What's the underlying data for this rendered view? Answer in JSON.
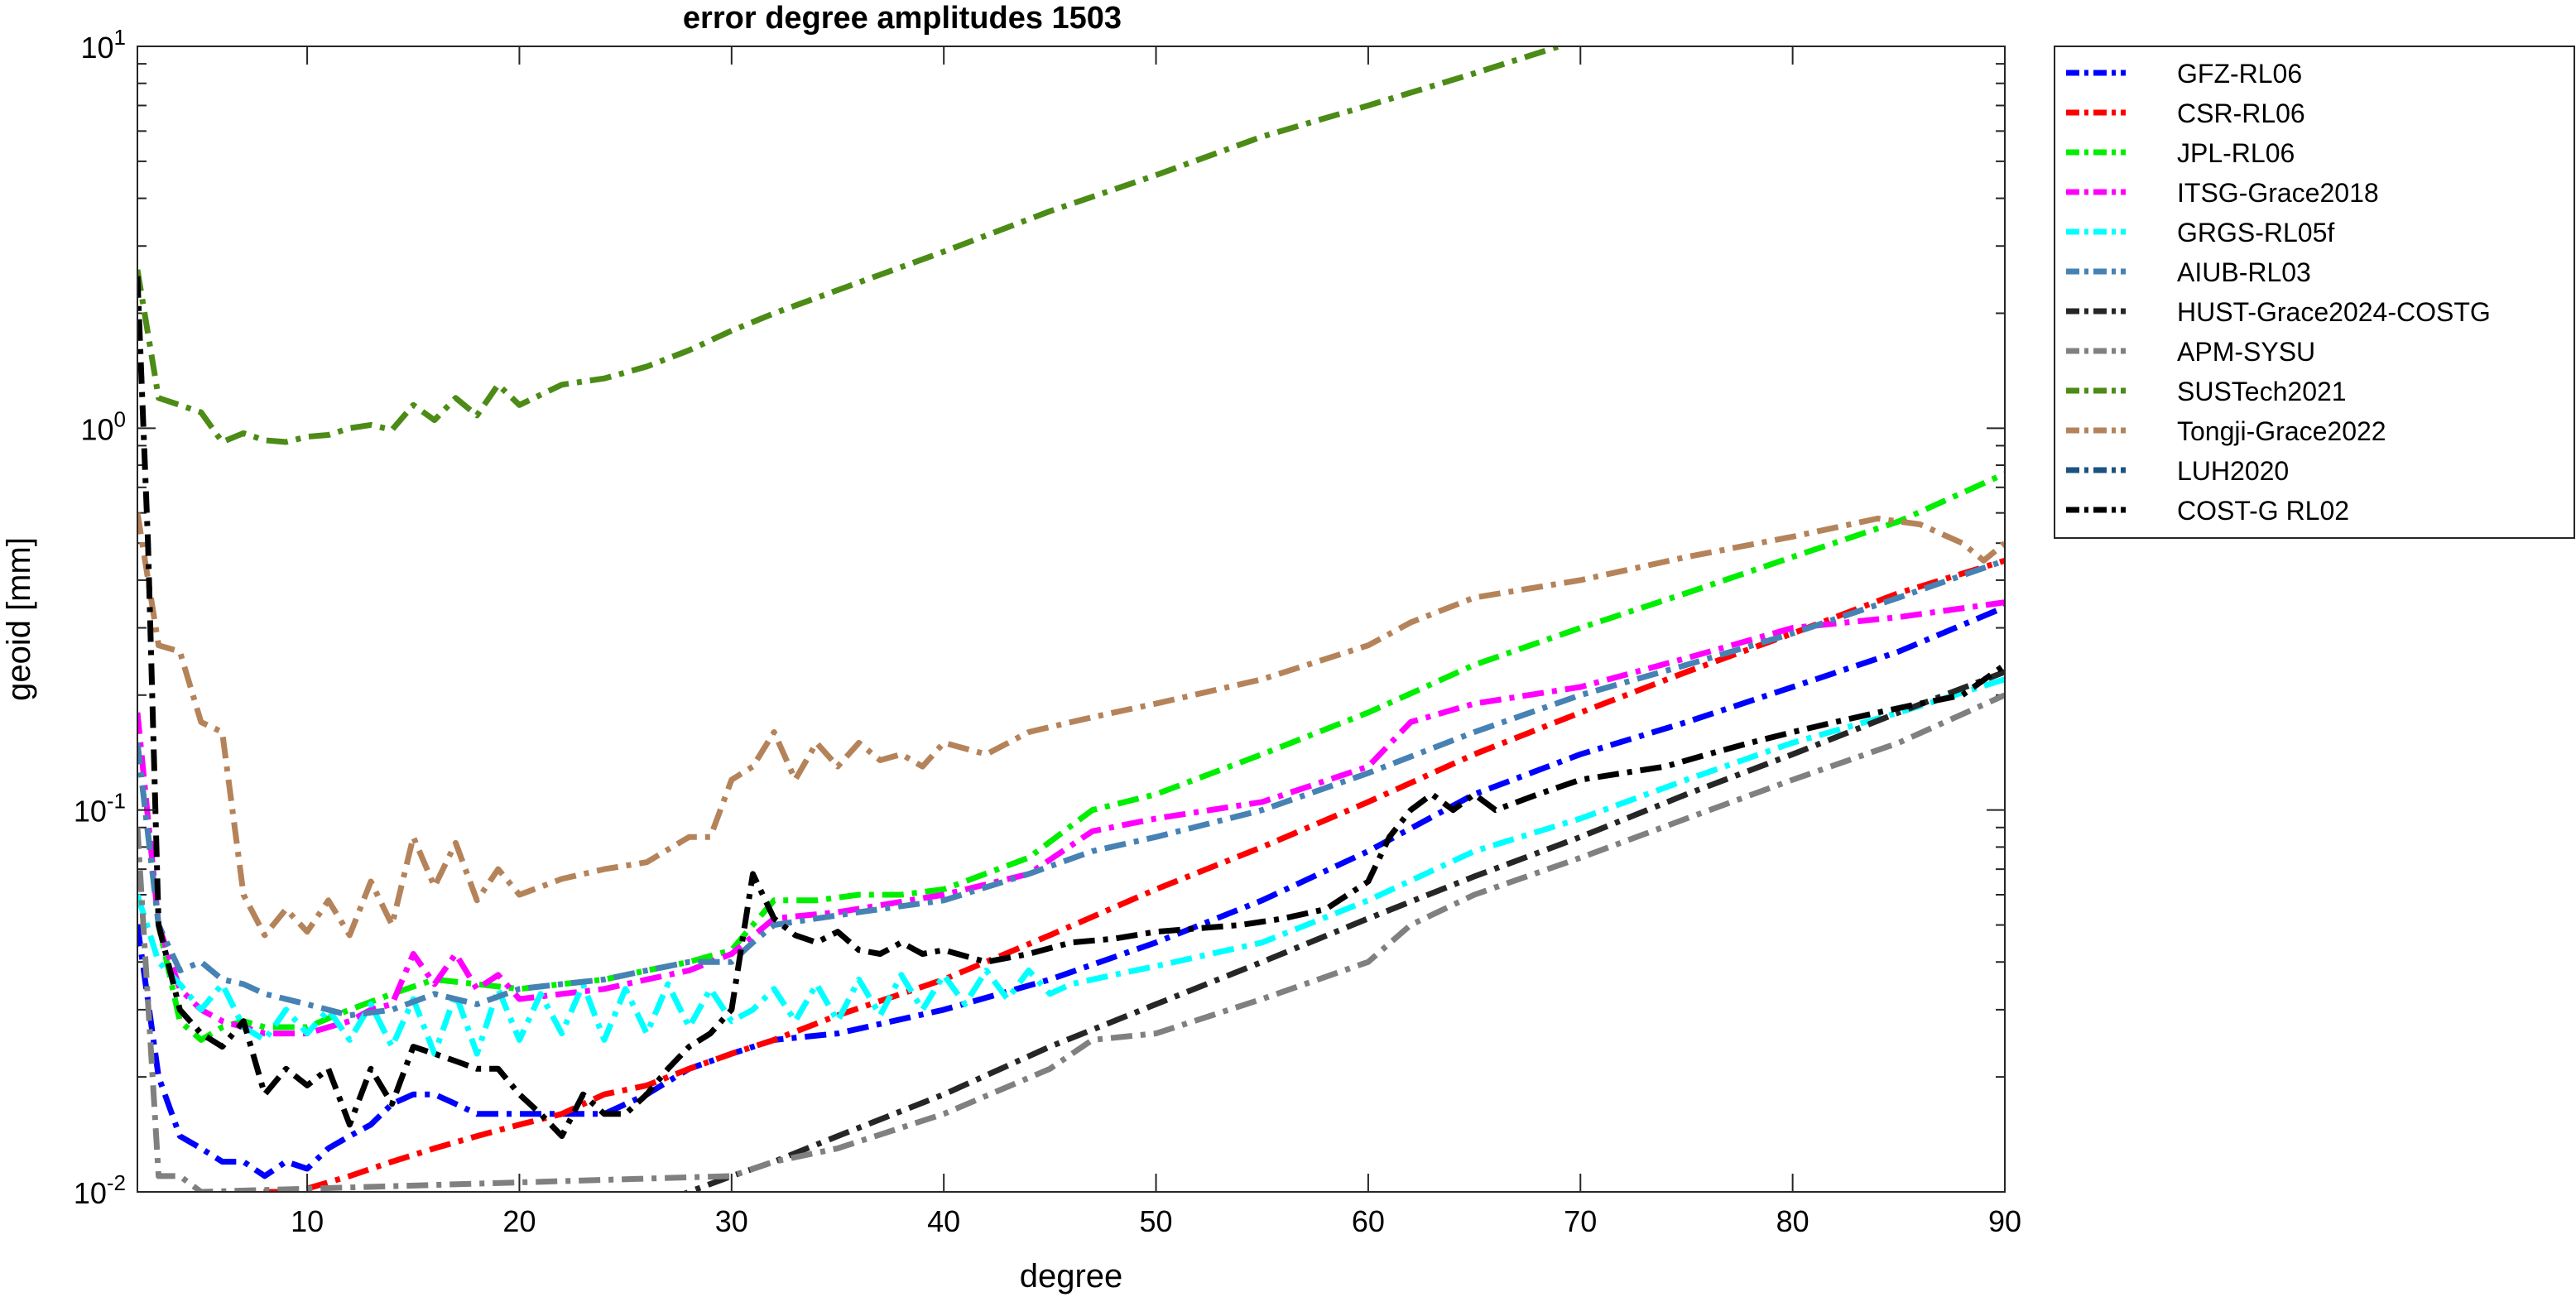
{
  "chart_data": {
    "type": "line",
    "title": "error degree amplitudes 1503",
    "xlabel": "degree",
    "ylabel": "geoid [mm]",
    "xlim": [
      2,
      90
    ],
    "ylim": [
      0.01,
      10
    ],
    "yscale": "log",
    "x_ticks": [
      10,
      20,
      30,
      40,
      50,
      60,
      70,
      80,
      90
    ],
    "x_tick_labels": [
      "10",
      "20",
      "30",
      "40",
      "50",
      "60",
      "70",
      "80",
      "90"
    ],
    "y_ticks": [
      0.01,
      0.1,
      1,
      10
    ],
    "y_tick_bases": [
      "10",
      "10",
      "10",
      "10"
    ],
    "y_tick_exponents": [
      "-2",
      "-1",
      "0",
      "1"
    ],
    "grid": false,
    "legend_position": "outside-top-right",
    "line_style": "dash-dot",
    "series": [
      {
        "name": "GFZ-RL06",
        "color": "#0000ff",
        "x": [
          2,
          3,
          4,
          5,
          6,
          7,
          8,
          9,
          10,
          11,
          12,
          13,
          14,
          15,
          16,
          17,
          18,
          19,
          20,
          22,
          24,
          26,
          28,
          30,
          32,
          35,
          40,
          45,
          50,
          55,
          60,
          65,
          70,
          75,
          80,
          85,
          90
        ],
        "y": [
          0.05,
          0.02,
          0.014,
          0.013,
          0.012,
          0.012,
          0.011,
          0.012,
          0.0115,
          0.013,
          0.014,
          0.015,
          0.017,
          0.018,
          0.018,
          0.017,
          0.016,
          0.016,
          0.016,
          0.016,
          0.016,
          0.018,
          0.021,
          0.023,
          0.025,
          0.026,
          0.03,
          0.036,
          0.045,
          0.058,
          0.078,
          0.11,
          0.14,
          0.17,
          0.21,
          0.26,
          0.34
        ]
      },
      {
        "name": "CSR-RL06",
        "color": "#ff0000",
        "x": [
          2,
          3,
          4,
          5,
          6,
          7,
          8,
          9,
          10,
          12,
          14,
          16,
          18,
          20,
          22,
          24,
          26,
          28,
          30,
          32,
          35,
          40,
          45,
          50,
          55,
          60,
          65,
          70,
          75,
          80,
          85,
          90
        ],
        "y": [
          0.009,
          0.009,
          0.009,
          0.009,
          0.0095,
          0.0098,
          0.01,
          0.01,
          0.0102,
          0.011,
          0.012,
          0.013,
          0.014,
          0.015,
          0.016,
          0.018,
          0.019,
          0.021,
          0.023,
          0.025,
          0.029,
          0.036,
          0.047,
          0.062,
          0.08,
          0.105,
          0.14,
          0.18,
          0.23,
          0.29,
          0.37,
          0.45
        ]
      },
      {
        "name": "JPL-RL06",
        "color": "#00ee00",
        "x": [
          2,
          3,
          4,
          5,
          6,
          7,
          8,
          9,
          10,
          12,
          14,
          16,
          18,
          20,
          22,
          24,
          26,
          28,
          30,
          31,
          32,
          34,
          36,
          38,
          40,
          44,
          47,
          50,
          55,
          60,
          65,
          70,
          75,
          80,
          85,
          90
        ],
        "y": [
          0.15,
          0.05,
          0.028,
          0.025,
          0.027,
          0.028,
          0.027,
          0.027,
          0.027,
          0.03,
          0.033,
          0.036,
          0.035,
          0.034,
          0.035,
          0.036,
          0.038,
          0.04,
          0.043,
          0.05,
          0.058,
          0.058,
          0.06,
          0.06,
          0.062,
          0.075,
          0.1,
          0.11,
          0.14,
          0.18,
          0.24,
          0.3,
          0.37,
          0.46,
          0.57,
          0.76
        ]
      },
      {
        "name": "ITSG-Grace2018",
        "color": "#ff00ff",
        "x": [
          2,
          3,
          4,
          5,
          6,
          7,
          8,
          9,
          10,
          11,
          12,
          13,
          14,
          15,
          16,
          17,
          18,
          19,
          20,
          22,
          24,
          26,
          28,
          30,
          32,
          35,
          40,
          44,
          47,
          50,
          55,
          60,
          62,
          65,
          70,
          75,
          80,
          85,
          90
        ],
        "y": [
          0.18,
          0.05,
          0.034,
          0.03,
          0.028,
          0.027,
          0.026,
          0.026,
          0.026,
          0.027,
          0.028,
          0.03,
          0.031,
          0.042,
          0.035,
          0.042,
          0.034,
          0.037,
          0.032,
          0.033,
          0.034,
          0.036,
          0.038,
          0.042,
          0.052,
          0.054,
          0.06,
          0.068,
          0.088,
          0.095,
          0.105,
          0.13,
          0.17,
          0.19,
          0.21,
          0.25,
          0.3,
          0.32,
          0.35
        ]
      },
      {
        "name": "GRGS-RL05f",
        "color": "#00ffff",
        "x": [
          2,
          3,
          4,
          5,
          6,
          7,
          8,
          9,
          10,
          11,
          12,
          13,
          14,
          15,
          16,
          17,
          18,
          19,
          20,
          21,
          22,
          23,
          24,
          25,
          26,
          27,
          28,
          29,
          30,
          31,
          32,
          33,
          34,
          35,
          36,
          37,
          38,
          39,
          40,
          41,
          42,
          43,
          44,
          45,
          46,
          48,
          50,
          55,
          60,
          65,
          70,
          75,
          80,
          85,
          90
        ],
        "y": [
          0.06,
          0.04,
          0.035,
          0.03,
          0.035,
          0.027,
          0.025,
          0.03,
          0.026,
          0.03,
          0.025,
          0.031,
          0.024,
          0.032,
          0.023,
          0.033,
          0.023,
          0.034,
          0.025,
          0.033,
          0.026,
          0.035,
          0.025,
          0.034,
          0.026,
          0.035,
          0.027,
          0.034,
          0.028,
          0.03,
          0.034,
          0.028,
          0.035,
          0.028,
          0.036,
          0.029,
          0.037,
          0.03,
          0.037,
          0.031,
          0.038,
          0.032,
          0.038,
          0.033,
          0.035,
          0.037,
          0.039,
          0.045,
          0.058,
          0.078,
          0.095,
          0.12,
          0.15,
          0.18,
          0.22
        ]
      },
      {
        "name": "AIUB-RL03",
        "color": "#4682b4",
        "x": [
          2,
          3,
          4,
          5,
          6,
          7,
          8,
          10,
          12,
          14,
          16,
          18,
          20,
          22,
          24,
          26,
          28,
          30,
          31,
          32,
          34,
          36,
          38,
          40,
          44,
          47,
          50,
          55,
          60,
          65,
          70,
          75,
          80,
          85,
          90
        ],
        "y": [
          0.15,
          0.05,
          0.038,
          0.04,
          0.036,
          0.035,
          0.033,
          0.031,
          0.029,
          0.03,
          0.033,
          0.031,
          0.034,
          0.035,
          0.036,
          0.038,
          0.04,
          0.04,
          0.045,
          0.05,
          0.052,
          0.054,
          0.056,
          0.058,
          0.068,
          0.078,
          0.085,
          0.1,
          0.125,
          0.16,
          0.2,
          0.24,
          0.29,
          0.36,
          0.45
        ]
      },
      {
        "name": "HUST-Grace2024-COSTG",
        "color": "#262626",
        "x": [
          27,
          28,
          30,
          32,
          35,
          40,
          45,
          50,
          55,
          60,
          65,
          70,
          75,
          80,
          85,
          90
        ],
        "y": [
          0.0095,
          0.01,
          0.011,
          0.012,
          0.014,
          0.018,
          0.024,
          0.031,
          0.04,
          0.052,
          0.067,
          0.085,
          0.11,
          0.14,
          0.18,
          0.23
        ]
      },
      {
        "name": "APM-SYSU",
        "color": "#808080",
        "x": [
          2,
          3,
          4,
          5,
          30,
          32,
          35,
          40,
          45,
          47,
          50,
          55,
          60,
          62,
          65,
          70,
          75,
          80,
          85,
          90
        ],
        "y": [
          0.09,
          0.011,
          0.011,
          0.01,
          0.011,
          0.012,
          0.013,
          0.016,
          0.021,
          0.025,
          0.026,
          0.032,
          0.04,
          0.05,
          0.06,
          0.075,
          0.095,
          0.12,
          0.15,
          0.2
        ]
      },
      {
        "name": "SUSTech2021",
        "color": "#4b8b16",
        "x": [
          2,
          3,
          4,
          5,
          6,
          7,
          8,
          9,
          10,
          11,
          12,
          13,
          14,
          15,
          16,
          17,
          18,
          19,
          20,
          22,
          24,
          26,
          28,
          30,
          32,
          35,
          40,
          45,
          50,
          55,
          60,
          65,
          69
        ],
        "y": [
          2.6,
          1.2,
          1.15,
          1.1,
          0.92,
          0.97,
          0.93,
          0.92,
          0.95,
          0.96,
          1.0,
          1.02,
          0.99,
          1.15,
          1.05,
          1.2,
          1.08,
          1.3,
          1.15,
          1.3,
          1.35,
          1.45,
          1.6,
          1.8,
          2.0,
          2.3,
          2.9,
          3.7,
          4.6,
          5.8,
          7.0,
          8.5,
          10.0
        ]
      },
      {
        "name": "Tongji-Grace2022",
        "color": "#b5835a",
        "x": [
          2,
          3,
          4,
          5,
          6,
          7,
          8,
          9,
          10,
          11,
          12,
          13,
          14,
          15,
          16,
          17,
          18,
          19,
          20,
          22,
          24,
          26,
          28,
          29,
          30,
          31,
          32,
          33,
          34,
          35,
          36,
          37,
          38,
          39,
          40,
          42,
          44,
          46,
          48,
          50,
          55,
          60,
          62,
          65,
          70,
          75,
          80,
          84,
          86,
          88,
          89,
          90
        ],
        "y": [
          0.6,
          0.27,
          0.26,
          0.17,
          0.16,
          0.06,
          0.047,
          0.055,
          0.048,
          0.058,
          0.047,
          0.065,
          0.05,
          0.085,
          0.063,
          0.082,
          0.058,
          0.07,
          0.06,
          0.066,
          0.07,
          0.073,
          0.085,
          0.085,
          0.12,
          0.13,
          0.16,
          0.12,
          0.15,
          0.13,
          0.15,
          0.135,
          0.14,
          0.13,
          0.15,
          0.14,
          0.16,
          0.17,
          0.18,
          0.19,
          0.22,
          0.27,
          0.31,
          0.36,
          0.4,
          0.46,
          0.52,
          0.58,
          0.56,
          0.5,
          0.45,
          0.5
        ]
      },
      {
        "name": "LUH2020",
        "color": "#1c5280",
        "x": [],
        "y": []
      },
      {
        "name": "COST-G RL02",
        "color": "#000000",
        "x": [
          2,
          2.5,
          3,
          4,
          5,
          6,
          7,
          8,
          9,
          10,
          11,
          12,
          13,
          14,
          15,
          16,
          17,
          18,
          19,
          20,
          21,
          22,
          23,
          24,
          25,
          26,
          27,
          28,
          29,
          30,
          31,
          32,
          33,
          34,
          35,
          36,
          37,
          38,
          39,
          40,
          42,
          44,
          46,
          48,
          50,
          52,
          54,
          56,
          58,
          60,
          61,
          62,
          63,
          64,
          65,
          66,
          68,
          70,
          72,
          74,
          76,
          78,
          80,
          82,
          84,
          86,
          88,
          90
        ],
        "y": [
          2.5,
          0.5,
          0.05,
          0.03,
          0.026,
          0.024,
          0.028,
          0.018,
          0.021,
          0.019,
          0.021,
          0.015,
          0.021,
          0.017,
          0.024,
          0.023,
          0.022,
          0.021,
          0.021,
          0.018,
          0.016,
          0.014,
          0.018,
          0.016,
          0.016,
          0.018,
          0.021,
          0.024,
          0.026,
          0.03,
          0.068,
          0.052,
          0.047,
          0.045,
          0.048,
          0.043,
          0.042,
          0.045,
          0.042,
          0.043,
          0.04,
          0.042,
          0.045,
          0.046,
          0.048,
          0.049,
          0.05,
          0.052,
          0.055,
          0.065,
          0.085,
          0.1,
          0.11,
          0.1,
          0.11,
          0.1,
          0.11,
          0.12,
          0.125,
          0.13,
          0.14,
          0.15,
          0.16,
          0.17,
          0.18,
          0.19,
          0.2,
          0.24
        ]
      }
    ]
  }
}
